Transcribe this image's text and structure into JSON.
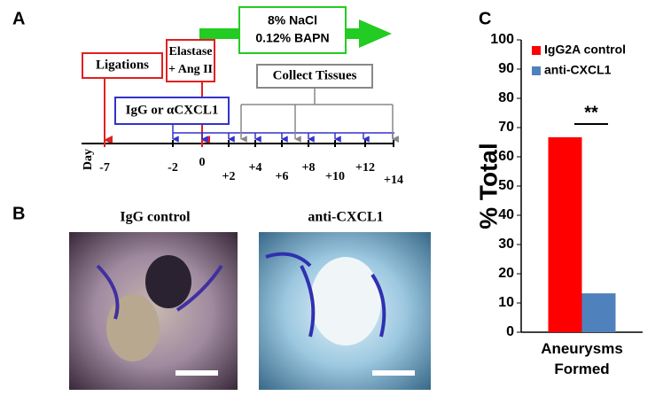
{
  "panel_labels": [
    "A",
    "B",
    "C"
  ],
  "timeline": {
    "treatment": [
      "8% NaCl",
      "0.12% BAPN"
    ],
    "ligations": "Ligations",
    "elastase": [
      "Elastase",
      "+ Ang II"
    ],
    "injection": "IgG or αCXCL1",
    "collect": "Collect Tissues",
    "axis_label": "Day",
    "days": [
      "-7",
      "-2",
      "0",
      "+2",
      "+4",
      "+6",
      "+8",
      "+10",
      "+12",
      "+14"
    ]
  },
  "photos": [
    "IgG control",
    "anti-CXCL1"
  ],
  "chart_data": {
    "type": "bar",
    "categories": [
      "Aneurysms Formed"
    ],
    "series": [
      {
        "name": "IgG2A control",
        "color": "#ff0000",
        "values": [
          66.7
        ]
      },
      {
        "name": "anti-CXCL1",
        "color": "#4f81bd",
        "values": [
          13.3
        ]
      }
    ],
    "ylabel": "% Total",
    "annotation": "**",
    "ylim": [
      0,
      100
    ],
    "yticks": [
      0,
      10,
      20,
      30,
      40,
      50,
      60,
      70,
      80,
      90,
      100
    ],
    "legend": "top-right"
  }
}
